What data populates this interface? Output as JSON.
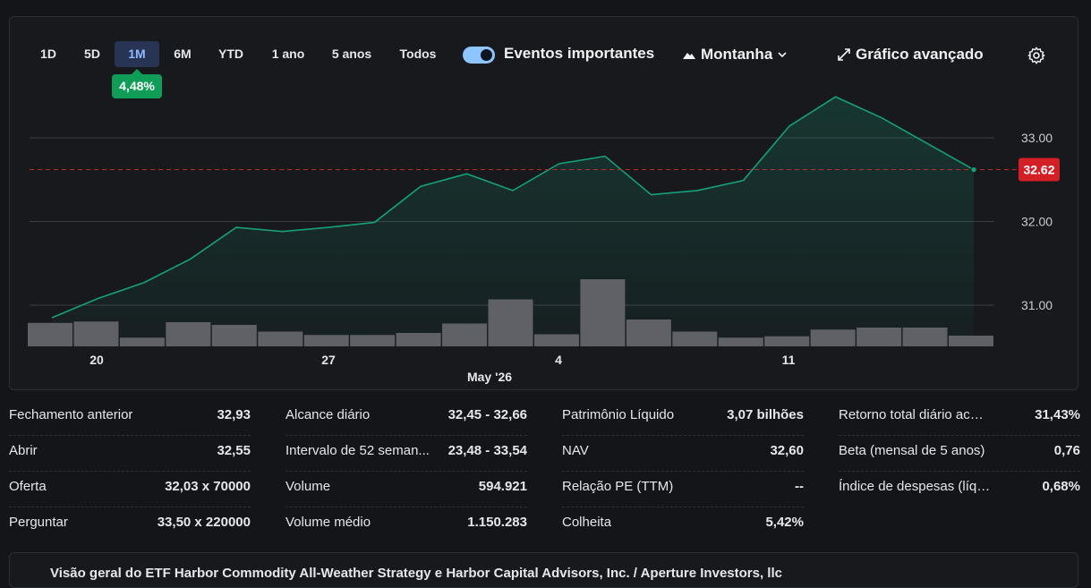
{
  "ranges": [
    "1D",
    "5D",
    "1M",
    "6M",
    "YTD",
    "1 ano",
    "5 anos",
    "Todos"
  ],
  "active_range": "1M",
  "change_badge": "4,48%",
  "events_toggle": {
    "label": "Eventos importantes",
    "on": true
  },
  "chart_style": {
    "label": "Montanha"
  },
  "advanced_chart": {
    "label": "Gráfico avançado"
  },
  "colors": {
    "line": "#16a07a",
    "price_tag": "#d32027",
    "badge": "#0f9d58",
    "active_range_bg": "#273453"
  },
  "chart_data": {
    "type": "area",
    "title": "",
    "x_ticks": [
      "20",
      "27",
      "4",
      "11"
    ],
    "x_axis_month": "May '26",
    "y_ticks": [
      "33.00",
      "32.00",
      "31.00"
    ],
    "ylim": [
      30.5,
      33.5
    ],
    "current_price": "32.62",
    "current_price_value": 32.62,
    "price": [
      30.85,
      31.08,
      31.27,
      31.55,
      31.93,
      31.88,
      31.93,
      31.99,
      32.42,
      32.57,
      32.37,
      32.69,
      32.78,
      32.32,
      32.37,
      32.49,
      33.14,
      33.49,
      33.24,
      32.93,
      32.62
    ],
    "volume": [
      0.35,
      0.37,
      0.13,
      0.36,
      0.32,
      0.22,
      0.17,
      0.17,
      0.2,
      0.34,
      0.7,
      0.18,
      1.0,
      0.4,
      0.22,
      0.13,
      0.15,
      0.25,
      0.28,
      0.28,
      0.16
    ]
  },
  "stats": [
    [
      {
        "label": "Fechamento anterior",
        "value": "32,93"
      },
      {
        "label": "Abrir",
        "value": "32,55"
      },
      {
        "label": "Oferta",
        "value": "32,03 x 70000"
      },
      {
        "label": "Perguntar",
        "value": "33,50 x 220000"
      }
    ],
    [
      {
        "label": "Alcance diário",
        "value": "32,45 - 32,66"
      },
      {
        "label": "Intervalo de 52 seman...",
        "value": "23,48 - 33,54"
      },
      {
        "label": "Volume",
        "value": "594.921"
      },
      {
        "label": "Volume médio",
        "value": "1.150.283"
      }
    ],
    [
      {
        "label": "Patrimônio Líquido",
        "value": "3,07 bilhões"
      },
      {
        "label": "NAV",
        "value": "32,60"
      },
      {
        "label": "Relação PE (TTM)",
        "value": "--"
      },
      {
        "label": "Colheita",
        "value": "5,42%"
      }
    ],
    [
      {
        "label": "Retorno total diário acumula...",
        "value": "31,43%"
      },
      {
        "label": "Beta (mensal de 5 anos)",
        "value": "0,76"
      },
      {
        "label": "Índice de despesas (líquido)",
        "value": "0,68%"
      }
    ]
  ],
  "overview_title": "Visão geral do ETF Harbor Commodity All-Weather Strategy e Harbor Capital Advisors, Inc. / Aperture Investors, llc"
}
